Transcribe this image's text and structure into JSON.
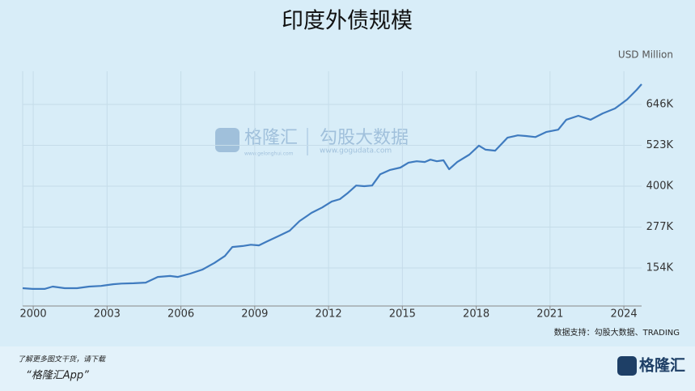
{
  "chart_data": {
    "type": "line",
    "title": "印度外债规模",
    "unit_label": "USD Million",
    "source": "数据支持：勾股大数据、TRADING",
    "footer_text": "了解更多图文干货，请下载",
    "footer_app": "“格隆汇App”",
    "logo_text": "格隆汇",
    "watermark": [
      "格隆汇",
      "www.gelonghui.com",
      "勾股大数据",
      "www.gogudata.com"
    ],
    "color": "#3f7bbf",
    "grid": true,
    "xlim": [
      1999.57,
      2024.72
    ],
    "xticks": [
      2000,
      2003,
      2006,
      2009,
      2012,
      2015,
      2018,
      2021,
      2024
    ],
    "ylim": [
      39500,
      746000
    ],
    "yticks": [
      {
        "value": 154000,
        "label": "154K"
      },
      {
        "value": 277000,
        "label": "277K"
      },
      {
        "value": 400000,
        "label": "400K"
      },
      {
        "value": 523000,
        "label": "523K"
      },
      {
        "value": 646000,
        "label": "646K"
      }
    ],
    "x": [
      1999.57,
      1999.97,
      2000.46,
      2000.79,
      2001.28,
      2001.78,
      2002.27,
      2002.76,
      2003.25,
      2003.58,
      2004.08,
      2004.57,
      2005.06,
      2005.56,
      2005.88,
      2006.38,
      2006.87,
      2007.36,
      2007.79,
      2008.09,
      2008.51,
      2008.84,
      2009.17,
      2009.5,
      2009.99,
      2010.42,
      2010.82,
      2011.31,
      2011.74,
      2012.13,
      2012.46,
      2012.79,
      2013.12,
      2013.45,
      2013.77,
      2014.1,
      2014.5,
      2014.92,
      2015.25,
      2015.58,
      2015.91,
      2016.14,
      2016.4,
      2016.67,
      2016.9,
      2017.23,
      2017.72,
      2018.11,
      2018.38,
      2018.77,
      2019.27,
      2019.69,
      2020.02,
      2020.41,
      2020.84,
      2021.33,
      2021.66,
      2022.15,
      2022.65,
      2023.14,
      2023.64,
      2024.13,
      2024.52,
      2024.72
    ],
    "values": [
      93000,
      91000,
      91000,
      98000,
      93000,
      93000,
      98000,
      100000,
      105000,
      107000,
      108000,
      110000,
      127000,
      130000,
      127000,
      137000,
      149000,
      169000,
      190000,
      217000,
      220000,
      224000,
      222000,
      234000,
      251000,
      266000,
      295000,
      320000,
      336000,
      354000,
      361000,
      380000,
      402000,
      400000,
      402000,
      436000,
      449000,
      456000,
      471000,
      475000,
      473000,
      480000,
      475000,
      478000,
      451000,
      473000,
      495000,
      522000,
      510000,
      507000,
      546000,
      553000,
      551000,
      548000,
      563000,
      570000,
      600000,
      612000,
      600000,
      619000,
      634000,
      661000,
      690000,
      707000
    ]
  }
}
